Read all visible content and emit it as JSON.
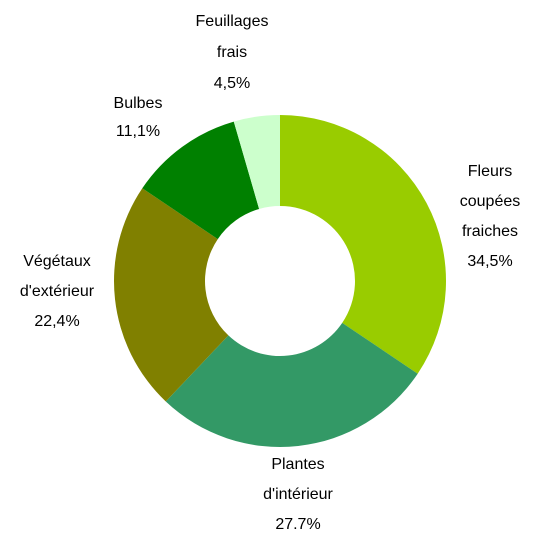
{
  "chart_data": {
    "type": "donut",
    "categories": [
      "Fleurs coupées fraiches",
      "Plantes d'intérieur",
      "Végétaux d'extérieur",
      "Bulbes",
      "Feuillages frais"
    ],
    "values": [
      34.5,
      27.7,
      22.4,
      11.1,
      4.5
    ],
    "value_labels": [
      "34,5%",
      "27.7%",
      "22,4%",
      "11,1%",
      "4,5%"
    ],
    "colors": [
      "#99cc00",
      "#339966",
      "#808000",
      "#008000",
      "#ccffcc"
    ]
  }
}
